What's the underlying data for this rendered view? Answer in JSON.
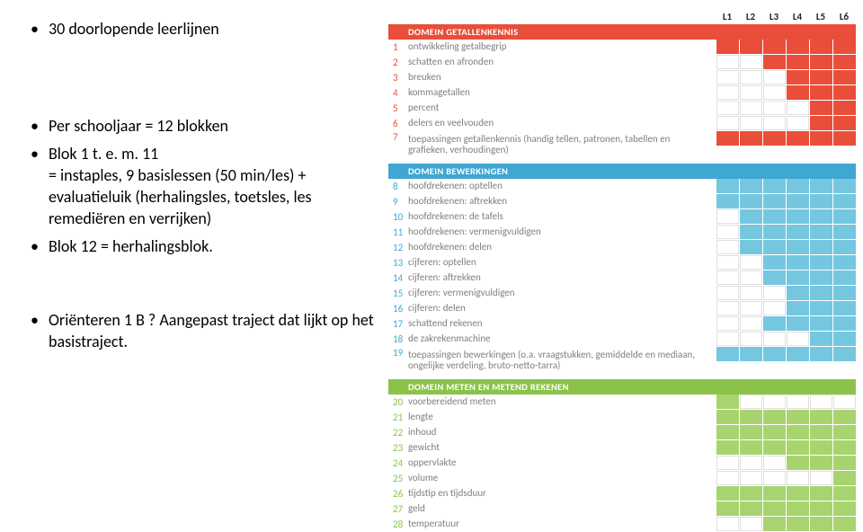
{
  "left": {
    "b1": "30 doorlopende leerlijnen",
    "b2": "Per schooljaar = 12 blokken",
    "b3": "Blok 1 t. e. m. 11",
    "b3_cont": "= instaples, 9 basislessen (50 min/les) + evaluatieluik (herhalingsles, toetsles, les remediëren en verrijken)",
    "b4": "Blok 12 = herhalingsblok.",
    "b5": "Oriënteren 1 B ? Aangepast traject dat lijkt op het basistraject."
  },
  "colors": {
    "domain1": "#e94e3a",
    "domain2": "#3fa7d1",
    "domain3": "#8bc34a",
    "domain1_cell": "#e94e3a",
    "domain2_cell": "#75c7e0",
    "domain3_cell": "#a8d46f",
    "num1": "#e94e3a",
    "num2": "#3fa7d1",
    "num3": "#8bc34a"
  },
  "levels": [
    "L1",
    "L2",
    "L3",
    "L4",
    "L5",
    "L6"
  ],
  "domains": [
    {
      "title": "DOMEIN GETALLENKENNIS",
      "colorKey": "domain1",
      "cellColorKey": "domain1_cell",
      "numColorKey": "num1",
      "rows": [
        {
          "n": "1",
          "label": "ontwikkeling getalbegrip",
          "fill": [
            1,
            1,
            1,
            1,
            1,
            1
          ]
        },
        {
          "n": "2",
          "label": "schatten en afronden",
          "fill": [
            0,
            0,
            1,
            1,
            1,
            1
          ]
        },
        {
          "n": "3",
          "label": "breuken",
          "fill": [
            0,
            0,
            0,
            1,
            1,
            1
          ]
        },
        {
          "n": "4",
          "label": "kommagetallen",
          "fill": [
            0,
            0,
            0,
            1,
            1,
            1
          ]
        },
        {
          "n": "5",
          "label": "percent",
          "fill": [
            0,
            0,
            0,
            0,
            1,
            1
          ]
        },
        {
          "n": "6",
          "label": "delers en veelvouden",
          "fill": [
            0,
            0,
            0,
            0,
            1,
            1
          ]
        },
        {
          "n": "7",
          "label": "toepassingen getallenkennis (handig tellen, patronen, tabellen en grafieken, verhoudingen)",
          "fill": [
            1,
            1,
            1,
            1,
            1,
            1
          ]
        }
      ]
    },
    {
      "title": "DOMEIN BEWERKINGEN",
      "colorKey": "domain2",
      "cellColorKey": "domain2_cell",
      "numColorKey": "num2",
      "rows": [
        {
          "n": "8",
          "label": "hoofdrekenen: optellen",
          "fill": [
            1,
            1,
            1,
            1,
            1,
            1
          ]
        },
        {
          "n": "9",
          "label": "hoofdrekenen: aftrekken",
          "fill": [
            1,
            1,
            1,
            1,
            1,
            1
          ]
        },
        {
          "n": "10",
          "label": "hoofdrekenen: de tafels",
          "fill": [
            0,
            1,
            1,
            1,
            1,
            1
          ]
        },
        {
          "n": "11",
          "label": "hoofdrekenen: vermenigvuldigen",
          "fill": [
            0,
            1,
            1,
            1,
            1,
            1
          ]
        },
        {
          "n": "12",
          "label": "hoofdrekenen: delen",
          "fill": [
            0,
            1,
            1,
            1,
            1,
            1
          ]
        },
        {
          "n": "13",
          "label": "cijferen: optellen",
          "fill": [
            0,
            0,
            1,
            1,
            1,
            1
          ]
        },
        {
          "n": "14",
          "label": "cijferen: aftrekken",
          "fill": [
            0,
            0,
            1,
            1,
            1,
            1
          ]
        },
        {
          "n": "15",
          "label": "cijferen: vermenigvuldigen",
          "fill": [
            0,
            0,
            0,
            1,
            1,
            1
          ]
        },
        {
          "n": "16",
          "label": "cijferen: delen",
          "fill": [
            0,
            0,
            0,
            1,
            1,
            1
          ]
        },
        {
          "n": "17",
          "label": "schattend rekenen",
          "fill": [
            0,
            0,
            1,
            1,
            1,
            1
          ]
        },
        {
          "n": "18",
          "label": "de zakrekenmachine",
          "fill": [
            0,
            0,
            0,
            0,
            1,
            1
          ]
        },
        {
          "n": "19",
          "label": "toepassingen bewerkingen (o.a. vraagstukken, gemiddelde en mediaan, ongelijke verdeling, bruto-netto-tarra)",
          "fill": [
            1,
            1,
            1,
            1,
            1,
            1
          ]
        }
      ]
    },
    {
      "title": "DOMEIN METEN EN METEND REKENEN",
      "colorKey": "domain3",
      "cellColorKey": "domain3_cell",
      "numColorKey": "num3",
      "rows": [
        {
          "n": "20",
          "label": "voorbereidend meten",
          "fill": [
            1,
            0,
            0,
            0,
            0,
            0
          ]
        },
        {
          "n": "21",
          "label": "lengte",
          "fill": [
            1,
            1,
            1,
            1,
            1,
            1
          ]
        },
        {
          "n": "22",
          "label": "inhoud",
          "fill": [
            1,
            1,
            1,
            1,
            1,
            1
          ]
        },
        {
          "n": "23",
          "label": "gewicht",
          "fill": [
            1,
            1,
            1,
            1,
            1,
            1
          ]
        },
        {
          "n": "24",
          "label": "oppervlakte",
          "fill": [
            0,
            0,
            0,
            1,
            1,
            1
          ]
        },
        {
          "n": "25",
          "label": "volume",
          "fill": [
            0,
            0,
            0,
            0,
            0,
            1
          ]
        },
        {
          "n": "26",
          "label": "tijdstip en tijdsduur",
          "fill": [
            1,
            1,
            1,
            1,
            1,
            1
          ]
        },
        {
          "n": "27",
          "label": "geld",
          "fill": [
            1,
            1,
            1,
            1,
            1,
            1
          ]
        },
        {
          "n": "28",
          "label": "temperatuur",
          "fill": [
            0,
            0,
            1,
            1,
            1,
            1
          ]
        }
      ]
    }
  ]
}
